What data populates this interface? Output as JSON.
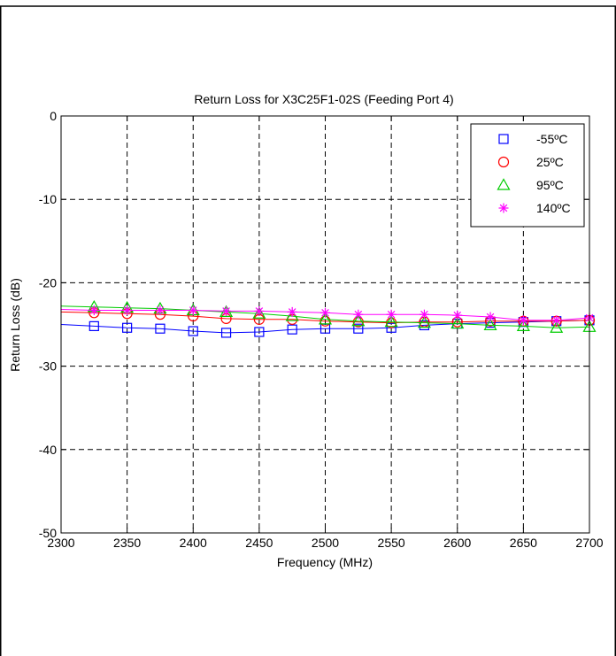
{
  "chart_data": {
    "type": "line",
    "title": "Return Loss for X3C25F1-02S (Feeding Port 4)",
    "xlabel": "Frequency (MHz)",
    "ylabel": "Return Loss (dB)",
    "xlim": [
      2300,
      2700
    ],
    "ylim": [
      -50,
      0
    ],
    "xticks": [
      2300,
      2350,
      2400,
      2450,
      2500,
      2550,
      2600,
      2650,
      2700
    ],
    "yticks": [
      0,
      -10,
      -20,
      -30,
      -40,
      -50
    ],
    "grid": true,
    "legend_position": "top-right",
    "x": [
      2300,
      2325,
      2350,
      2375,
      2400,
      2425,
      2450,
      2475,
      2500,
      2525,
      2550,
      2575,
      2600,
      2625,
      2650,
      2675,
      2700
    ],
    "series": [
      {
        "name": "-55ºC",
        "color": "#0000ff",
        "marker": "square",
        "values": [
          -25.0,
          -25.2,
          -25.4,
          -25.5,
          -25.8,
          -26.0,
          -25.9,
          -25.6,
          -25.5,
          -25.5,
          -25.4,
          -25.1,
          -24.9,
          -24.8,
          -24.7,
          -24.6,
          -24.5
        ]
      },
      {
        "name": "25ºC",
        "color": "#ff0000",
        "marker": "circle",
        "values": [
          -23.5,
          -23.6,
          -23.7,
          -23.8,
          -24.0,
          -24.3,
          -24.4,
          -24.4,
          -24.6,
          -24.7,
          -24.8,
          -24.7,
          -24.7,
          -24.6,
          -24.6,
          -24.6,
          -24.5
        ]
      },
      {
        "name": "95ºC",
        "color": "#00cc00",
        "marker": "triangle",
        "values": [
          -22.8,
          -22.9,
          -23.0,
          -23.1,
          -23.3,
          -23.5,
          -23.7,
          -24.0,
          -24.4,
          -24.6,
          -24.7,
          -24.8,
          -24.9,
          -25.1,
          -25.2,
          -25.4,
          -25.3
        ]
      },
      {
        "name": "140ºC",
        "color": "#ff00ff",
        "marker": "star",
        "values": [
          -23.2,
          -23.3,
          -23.3,
          -23.3,
          -23.3,
          -23.4,
          -23.4,
          -23.5,
          -23.6,
          -23.8,
          -23.8,
          -23.8,
          -23.9,
          -24.1,
          -24.5,
          -24.5,
          -24.2
        ]
      }
    ]
  }
}
